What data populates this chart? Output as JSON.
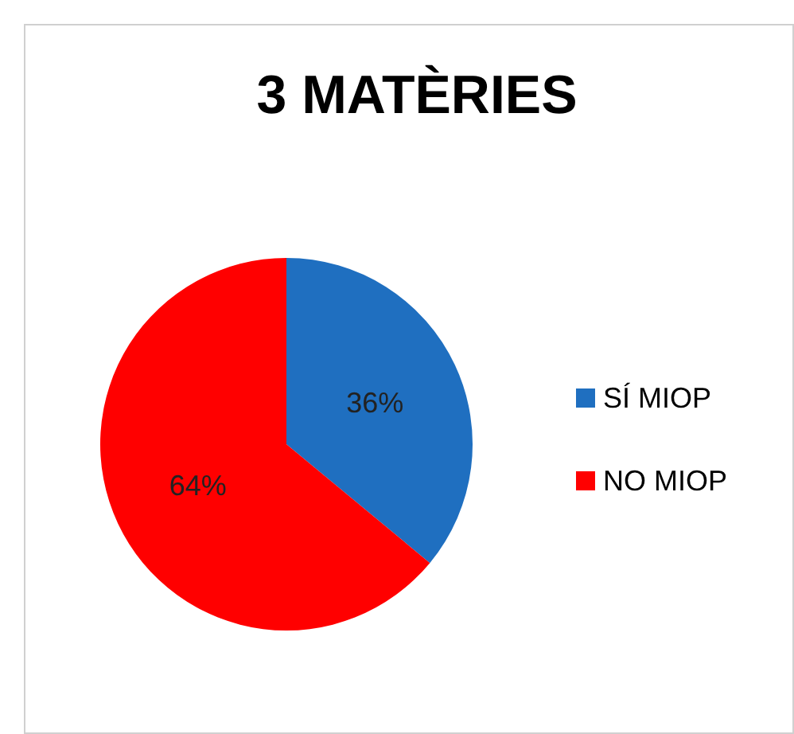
{
  "chart_data": {
    "type": "pie",
    "title": "3 MATÈRIES",
    "categories": [
      "SÍ MIOP",
      "NO MIOP"
    ],
    "values": [
      36,
      64
    ],
    "colors": [
      "#1f6fc0",
      "#ff0000"
    ],
    "value_labels": [
      "36%",
      "64%"
    ],
    "legend": "right"
  }
}
